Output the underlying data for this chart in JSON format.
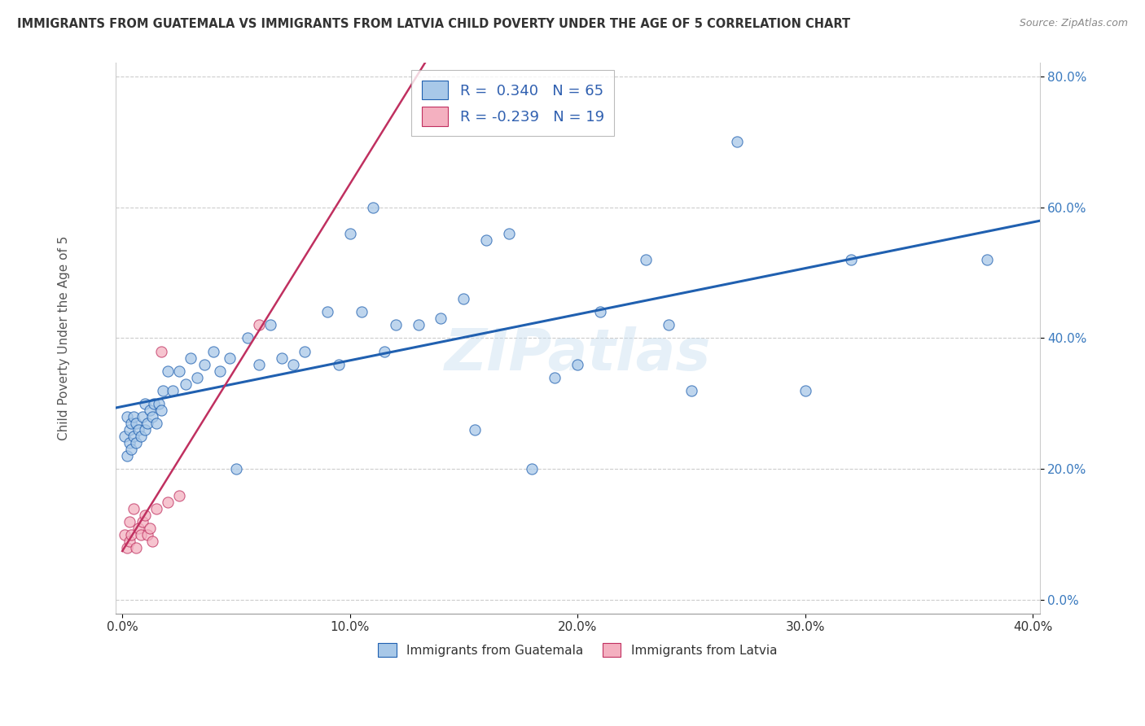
{
  "title": "IMMIGRANTS FROM GUATEMALA VS IMMIGRANTS FROM LATVIA CHILD POVERTY UNDER THE AGE OF 5 CORRELATION CHART",
  "source": "Source: ZipAtlas.com",
  "ylabel": "Child Poverty Under the Age of 5",
  "legend_label1": "Immigrants from Guatemala",
  "legend_label2": "Immigrants from Latvia",
  "R_guatemala": 0.34,
  "N_guatemala": 65,
  "R_latvia": -0.239,
  "N_latvia": 19,
  "xlim": [
    -0.003,
    0.403
  ],
  "ylim": [
    -0.02,
    0.82
  ],
  "xticks": [
    0.0,
    0.1,
    0.2,
    0.3,
    0.4
  ],
  "yticks": [
    0.0,
    0.2,
    0.4,
    0.6,
    0.8
  ],
  "color_guatemala": "#a8c8e8",
  "color_latvia": "#f4b0c0",
  "line_color_guatemala": "#2060b0",
  "line_color_latvia": "#c03060",
  "watermark_text": "ZIPatlas",
  "guatemala_x": [
    0.001,
    0.002,
    0.002,
    0.003,
    0.003,
    0.004,
    0.004,
    0.005,
    0.005,
    0.006,
    0.006,
    0.007,
    0.008,
    0.009,
    0.01,
    0.01,
    0.011,
    0.012,
    0.013,
    0.014,
    0.015,
    0.016,
    0.017,
    0.018,
    0.02,
    0.022,
    0.025,
    0.028,
    0.03,
    0.033,
    0.036,
    0.04,
    0.043,
    0.047,
    0.05,
    0.055,
    0.06,
    0.065,
    0.07,
    0.075,
    0.08,
    0.09,
    0.095,
    0.1,
    0.105,
    0.11,
    0.115,
    0.12,
    0.13,
    0.14,
    0.15,
    0.155,
    0.16,
    0.17,
    0.18,
    0.19,
    0.2,
    0.21,
    0.23,
    0.24,
    0.25,
    0.27,
    0.3,
    0.32,
    0.38
  ],
  "guatemala_y": [
    0.25,
    0.22,
    0.28,
    0.24,
    0.26,
    0.23,
    0.27,
    0.25,
    0.28,
    0.24,
    0.27,
    0.26,
    0.25,
    0.28,
    0.26,
    0.3,
    0.27,
    0.29,
    0.28,
    0.3,
    0.27,
    0.3,
    0.29,
    0.32,
    0.35,
    0.32,
    0.35,
    0.33,
    0.37,
    0.34,
    0.36,
    0.38,
    0.35,
    0.37,
    0.2,
    0.4,
    0.36,
    0.42,
    0.37,
    0.36,
    0.38,
    0.44,
    0.36,
    0.56,
    0.44,
    0.6,
    0.38,
    0.42,
    0.42,
    0.43,
    0.46,
    0.26,
    0.55,
    0.56,
    0.2,
    0.34,
    0.36,
    0.44,
    0.52,
    0.42,
    0.32,
    0.7,
    0.32,
    0.52,
    0.52
  ],
  "latvia_x": [
    0.001,
    0.002,
    0.003,
    0.003,
    0.004,
    0.005,
    0.006,
    0.007,
    0.008,
    0.009,
    0.01,
    0.011,
    0.012,
    0.013,
    0.015,
    0.017,
    0.02,
    0.025,
    0.06
  ],
  "latvia_y": [
    0.1,
    0.08,
    0.09,
    0.12,
    0.1,
    0.14,
    0.08,
    0.11,
    0.1,
    0.12,
    0.13,
    0.1,
    0.11,
    0.09,
    0.14,
    0.38,
    0.15,
    0.16,
    0.42
  ]
}
